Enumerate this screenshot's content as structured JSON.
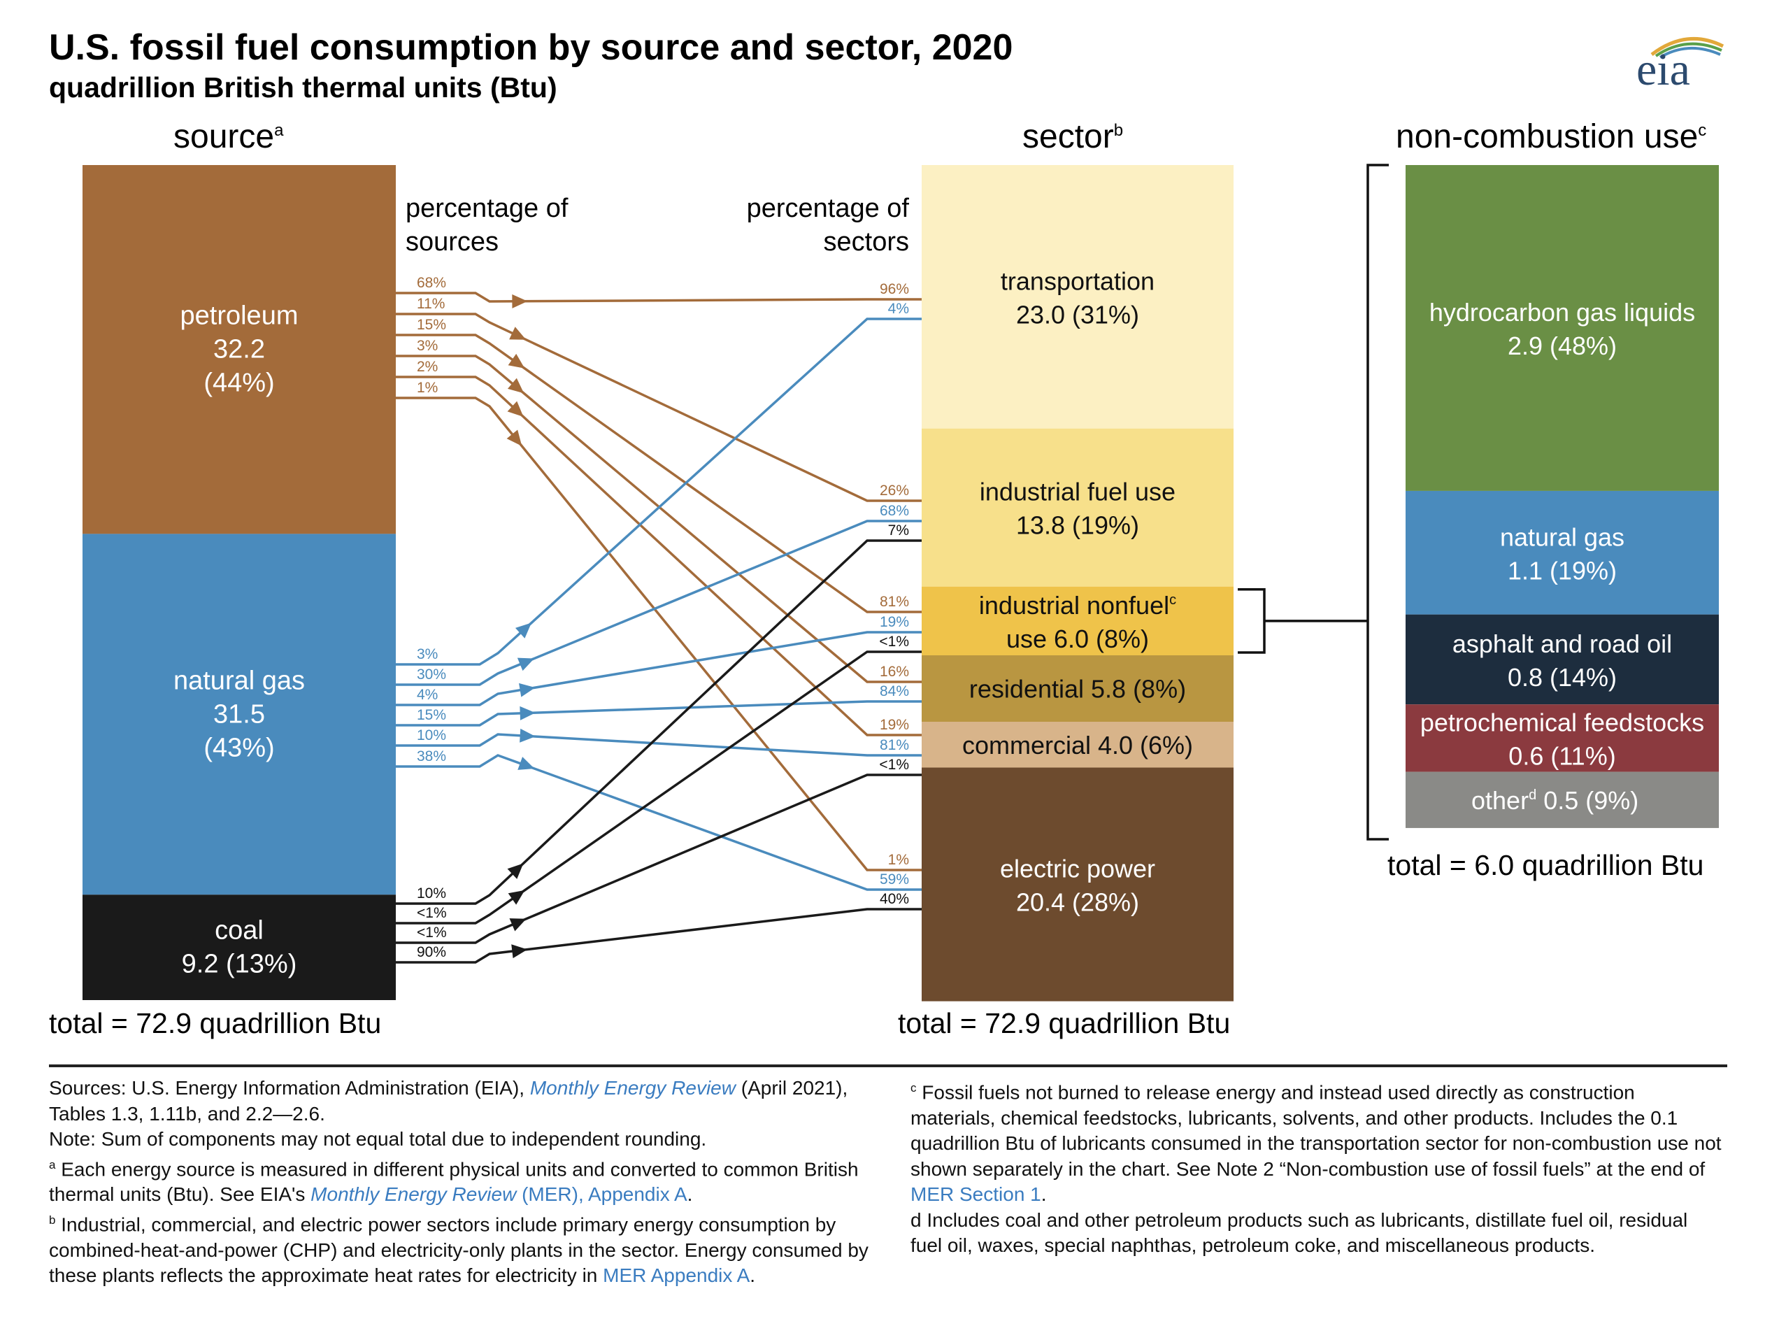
{
  "title": "U.S. fossil fuel consumption by source and sector, 2020",
  "subtitle": "quadrillion British thermal units (Btu)",
  "logo": {
    "text": "eia",
    "icon": "eia-logo-arc-icon"
  },
  "colors": {
    "petroleum": "#a36b3a",
    "natural_gas": "#4a8bbd",
    "coal": "#1a1a1a",
    "transportation": "#fcf0c3",
    "industrial_fuel": "#f7e08b",
    "industrial_nonfuel": "#efc34a",
    "residential": "#b99641",
    "commercial": "#d8b48a",
    "electric_power": "#6d4b2e",
    "hgl": "#6a8f45",
    "nc_natural_gas": "#4a8bbd",
    "asphalt": "#1d2d3e",
    "petrochemical": "#8b3a3f",
    "other": "#8a8a87"
  },
  "headers": {
    "source": "source",
    "source_sup": "a",
    "sector": "sector",
    "sector_sup": "b",
    "noncombustion": "non-combustion use",
    "noncombustion_sup": "c"
  },
  "labels": {
    "pct_sources_1": "percentage of",
    "pct_sources_2": "sources",
    "pct_sectors_1": "percentage of",
    "pct_sectors_2": "sectors"
  },
  "totals": {
    "source": "total = 72.9 quadrillion Btu",
    "sector": "total = 72.9 quadrillion Btu",
    "noncombustion": "total = 6.0 quadrillion Btu"
  },
  "chart_data": {
    "type": "flow",
    "units": "quadrillion Btu",
    "total": 72.9,
    "sources": [
      {
        "id": "petroleum",
        "name": "petroleum",
        "value": 32.2,
        "share": "44%",
        "l1": "petroleum",
        "l2": "32.2",
        "l3": "(44%)"
      },
      {
        "id": "natural_gas",
        "name": "natural gas",
        "value": 31.5,
        "share": "43%",
        "l1": "natural gas",
        "l2": "31.5",
        "l3": "(43%)"
      },
      {
        "id": "coal",
        "name": "coal",
        "value": 9.2,
        "share": "13%",
        "l1": "coal",
        "l2": "9.2 (13%)",
        "l3": ""
      }
    ],
    "sectors": [
      {
        "id": "transportation",
        "name": "transportation",
        "value": 23.0,
        "share": "31%",
        "l1": "transportation",
        "l2": "23.0 (31%)",
        "sup": ""
      },
      {
        "id": "industrial_fuel",
        "name": "industrial fuel use",
        "value": 13.8,
        "share": "19%",
        "l1": "industrial fuel use",
        "l2": "13.8 (19%)",
        "sup": ""
      },
      {
        "id": "industrial_nonfuel",
        "name": "industrial nonfuel use",
        "value": 6.0,
        "share": "8%",
        "l1": "industrial nonfuel",
        "l2": "use 6.0 (8%)",
        "sup": "c"
      },
      {
        "id": "residential",
        "name": "residential",
        "value": 5.8,
        "share": "8%",
        "l1": "residential 5.8 (8%)",
        "l2": "",
        "sup": ""
      },
      {
        "id": "commercial",
        "name": "commercial",
        "value": 4.0,
        "share": "6%",
        "l1": "commercial 4.0 (6%)",
        "l2": "",
        "sup": ""
      },
      {
        "id": "electric_power",
        "name": "electric power",
        "value": 20.4,
        "share": "28%",
        "l1": "electric power",
        "l2": "20.4 (28%)",
        "sup": ""
      }
    ],
    "flows": [
      {
        "source": "petroleum",
        "sector": "transportation",
        "pct_of_source": "68%",
        "pct_of_sector": "96%"
      },
      {
        "source": "petroleum",
        "sector": "industrial_fuel",
        "pct_of_source": "11%",
        "pct_of_sector": "26%"
      },
      {
        "source": "petroleum",
        "sector": "industrial_nonfuel",
        "pct_of_source": "15%",
        "pct_of_sector": "81%"
      },
      {
        "source": "petroleum",
        "sector": "residential",
        "pct_of_source": "3%",
        "pct_of_sector": "16%"
      },
      {
        "source": "petroleum",
        "sector": "commercial",
        "pct_of_source": "2%",
        "pct_of_sector": "19%"
      },
      {
        "source": "petroleum",
        "sector": "electric_power",
        "pct_of_source": "1%",
        "pct_of_sector": "1%"
      },
      {
        "source": "natural_gas",
        "sector": "transportation",
        "pct_of_source": "3%",
        "pct_of_sector": "4%"
      },
      {
        "source": "natural_gas",
        "sector": "industrial_fuel",
        "pct_of_source": "30%",
        "pct_of_sector": "68%"
      },
      {
        "source": "natural_gas",
        "sector": "industrial_nonfuel",
        "pct_of_source": "4%",
        "pct_of_sector": "19%"
      },
      {
        "source": "natural_gas",
        "sector": "residential",
        "pct_of_source": "15%",
        "pct_of_sector": "84%"
      },
      {
        "source": "natural_gas",
        "sector": "commercial",
        "pct_of_source": "10%",
        "pct_of_sector": "81%"
      },
      {
        "source": "natural_gas",
        "sector": "electric_power",
        "pct_of_source": "38%",
        "pct_of_sector": "59%"
      },
      {
        "source": "coal",
        "sector": "industrial_fuel",
        "pct_of_source": "10%",
        "pct_of_sector": "7%"
      },
      {
        "source": "coal",
        "sector": "industrial_nonfuel",
        "pct_of_source": "<1%",
        "pct_of_sector": "<1%"
      },
      {
        "source": "coal",
        "sector": "commercial",
        "pct_of_source": "<1%",
        "pct_of_sector": "<1%"
      },
      {
        "source": "coal",
        "sector": "electric_power",
        "pct_of_source": "90%",
        "pct_of_sector": "40%"
      }
    ],
    "noncombustion": {
      "total": 6.0,
      "items": [
        {
          "id": "hgl",
          "name": "hydrocarbon gas liquids",
          "value": 2.9,
          "share": "48%",
          "l1": "hydrocarbon gas liquids",
          "l2": "2.9 (48%)"
        },
        {
          "id": "nc_natural_gas",
          "name": "natural gas",
          "value": 1.1,
          "share": "19%",
          "l1": "natural gas",
          "l2": "1.1 (19%)"
        },
        {
          "id": "asphalt",
          "name": "asphalt and road oil",
          "value": 0.8,
          "share": "14%",
          "l1": "asphalt and road oil",
          "l2": "0.8 (14%)"
        },
        {
          "id": "petrochemical",
          "name": "petrochemical feedstocks",
          "value": 0.6,
          "share": "11%",
          "l1": "petrochemical feedstocks",
          "l2": "0.6 (11%)"
        },
        {
          "id": "other",
          "name": "other",
          "value": 0.5,
          "share": "9%",
          "l1": "other",
          "l1_sup": "d",
          "l2": "0.5 (9%)"
        }
      ]
    }
  },
  "notes": {
    "sources_1": "Sources: U.S. Energy Information Administration (EIA), ",
    "sources_link": "Monthly Energy Review",
    "sources_2": " (April 2021), Tables 1.3, 1.11b, and 2.2—2.6.",
    "note": "Note: Sum of components may not equal total due to independent rounding.",
    "a_mark": "a",
    "a_1": " Each energy source is measured in different physical units and converted to common British thermal units (Btu). See EIA's ",
    "a_link_it": "Monthly Energy Review",
    "a_link_rest": " (MER), Appendix A",
    "a_2": ".",
    "b_mark": "b",
    "b_1": " Industrial, commercial, and electric power sectors include primary energy consumption by combined-heat-and-power (CHP) and electricity-only plants in the sector. Energy consumed by these plants reflects the approximate heat rates for electricity in ",
    "b_link": "MER Appendix A",
    "b_2": ".",
    "c_mark": "c",
    "c_1": " Fossil fuels not burned to release energy and instead used directly as construction materials, chemical feedstocks, lubricants, solvents, and other products. Includes the 0.1 quadrillion Btu of lubricants consumed in the transportation sector for non-combustion use not shown separately in the chart. See Note 2 “Non-combustion use of fossil fuels” at the end of ",
    "c_link": "MER Section 1",
    "c_2": ".",
    "d": "d Includes coal and other petroleum products such as lubricants, distillate fuel oil, residual fuel oil, waxes, special naphthas, petroleum coke, and miscellaneous products."
  }
}
